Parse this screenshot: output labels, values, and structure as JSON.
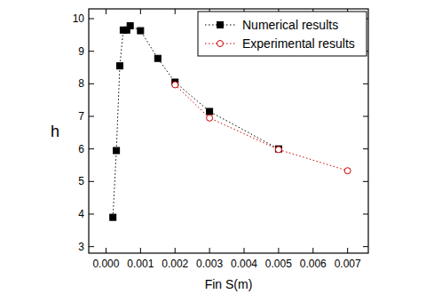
{
  "chart_data": {
    "type": "line",
    "x_label": "Fin S(m)",
    "y_label": "h",
    "xlim": [
      -0.0005,
      0.0076
    ],
    "ylim": [
      2.8,
      10.3
    ],
    "xticks": [
      {
        "value": 0,
        "label": "0.000"
      },
      {
        "value": 0.001,
        "label": "0.001"
      },
      {
        "value": 0.002,
        "label": "0.002"
      },
      {
        "value": 0.003,
        "label": "0.003"
      },
      {
        "value": 0.004,
        "label": "0.004"
      },
      {
        "value": 0.005,
        "label": "0.005"
      },
      {
        "value": 0.006,
        "label": "0.006"
      },
      {
        "value": 0.007,
        "label": "0.007"
      }
    ],
    "yticks": [
      3,
      4,
      5,
      6,
      7,
      8,
      9,
      10
    ],
    "grid": false,
    "legend": "upper right",
    "series": [
      {
        "name": "Numerical results",
        "color": "#000000",
        "marker": "square",
        "line_style": "dotted",
        "x": [
          0.0002,
          0.0003,
          0.0004,
          0.0005,
          0.0006,
          0.0007,
          0.001,
          0.0015,
          0.002,
          0.003,
          0.005
        ],
        "values": [
          3.9,
          5.95,
          8.55,
          9.65,
          9.65,
          9.78,
          9.63,
          8.78,
          8.05,
          7.15,
          6.0
        ]
      },
      {
        "name": "Experimental results",
        "color": "#d00000",
        "marker": "circle",
        "line_style": "dotted",
        "x": [
          0.002,
          0.003,
          0.005,
          0.007
        ],
        "values": [
          7.97,
          6.95,
          5.98,
          5.33
        ]
      }
    ]
  }
}
